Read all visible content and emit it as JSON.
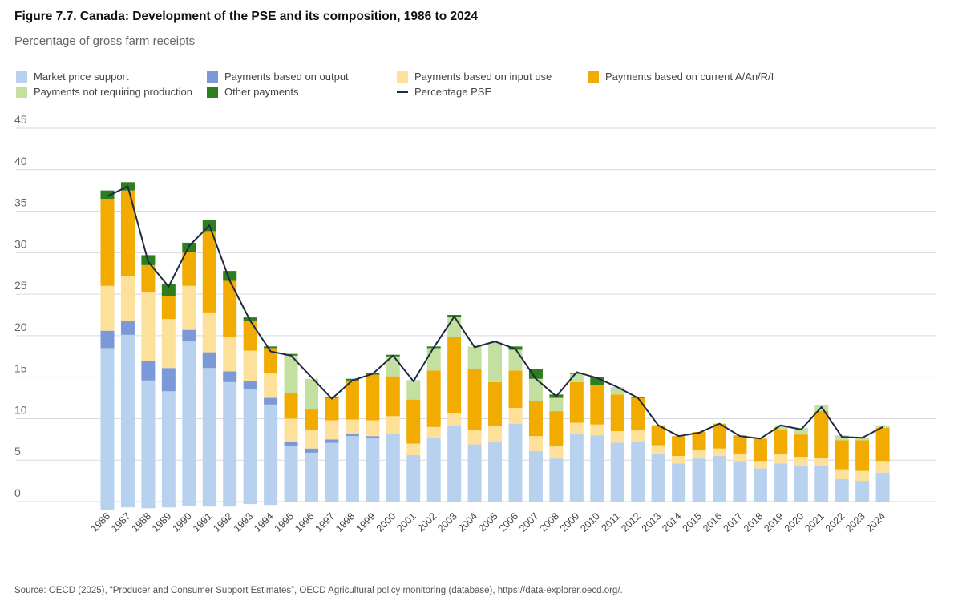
{
  "title": "Figure 7.7. Canada: Development of the PSE and its composition, 1986 to 2024",
  "subtitle": "Percentage of gross farm receipts",
  "source": "Source: OECD (2025), “Producer and Consumer Support Estimates”, OECD Agricultural policy monitoring (database), https://data-explorer.oecd.org/.",
  "chart_data": {
    "type": "bar",
    "stacked": true,
    "ylim": [
      0,
      45
    ],
    "yticks": [
      0,
      5,
      10,
      15,
      20,
      25,
      30,
      35,
      40,
      45
    ],
    "grid": true,
    "legend_position": "top",
    "categories": [
      "1986",
      "1987",
      "1988",
      "1989",
      "1990",
      "1991",
      "1992",
      "1993",
      "1994",
      "1995",
      "1996",
      "1997",
      "1998",
      "1999",
      "2000",
      "2001",
      "2002",
      "2003",
      "2004",
      "2005",
      "2006",
      "2007",
      "2008",
      "2009",
      "2010",
      "2011",
      "2012",
      "2013",
      "2014",
      "2015",
      "2016",
      "2017",
      "2018",
      "2019",
      "2020",
      "2021",
      "2022",
      "2023",
      "2024"
    ],
    "series": [
      {
        "name": "Market price support",
        "color": "#b7d1ee",
        "values": [
          18.5,
          20.1,
          14.6,
          13.3,
          19.3,
          16.1,
          14.4,
          13.5,
          11.7,
          6.7,
          5.9,
          7.1,
          7.9,
          7.7,
          8.1,
          5.6,
          7.7,
          9.1,
          6.9,
          7.2,
          9.4,
          6.1,
          5.2,
          8.2,
          8.0,
          7.1,
          7.2,
          5.8,
          4.6,
          5.2,
          5.5,
          4.9,
          4.0,
          4.6,
          4.3,
          4.3,
          2.7,
          2.5,
          3.5
        ]
      },
      {
        "name": "Payments based on output",
        "color": "#7b98d8",
        "values": [
          2.1,
          1.7,
          2.4,
          2.8,
          1.4,
          1.9,
          1.3,
          1.0,
          0.8,
          0.5,
          0.5,
          0.4,
          0.3,
          0.2,
          0.1,
          0,
          0,
          0,
          0,
          0,
          0,
          0,
          0,
          0,
          0,
          0,
          0,
          0,
          0,
          0,
          0,
          0,
          0,
          0,
          0,
          0,
          0,
          0,
          0
        ]
      },
      {
        "name": "Payments based on input use",
        "color": "#fde09a",
        "values": [
          5.4,
          5.4,
          8.2,
          5.9,
          5.3,
          4.8,
          4.1,
          3.7,
          3.0,
          2.8,
          2.2,
          2.3,
          1.7,
          1.9,
          2.1,
          1.4,
          1.3,
          1.6,
          1.7,
          1.9,
          1.9,
          1.8,
          1.5,
          1.3,
          1.3,
          1.4,
          1.4,
          1.0,
          0.9,
          1.0,
          0.9,
          0.9,
          0.9,
          1.1,
          1.1,
          1.0,
          1.2,
          1.2,
          1.4
        ]
      },
      {
        "name": "Payments based on current A/An/R/I",
        "color": "#f2ab00",
        "values": [
          10.5,
          10.3,
          3.3,
          2.8,
          4.1,
          9.8,
          6.8,
          3.6,
          3.0,
          3.1,
          2.5,
          2.7,
          4.7,
          5.5,
          4.8,
          5.3,
          6.8,
          9.1,
          7.4,
          5.3,
          4.5,
          4.2,
          4.2,
          4.9,
          4.7,
          4.4,
          3.9,
          2.4,
          2.4,
          2.2,
          3.0,
          2.2,
          2.7,
          2.9,
          2.7,
          5.6,
          3.5,
          3.7,
          4.0
        ]
      },
      {
        "name": "Payments not requiring production",
        "color": "#c4e0a0",
        "values": [
          0,
          0,
          0,
          0,
          0,
          0,
          0,
          0,
          0,
          4.5,
          3.7,
          0,
          0,
          0,
          2.4,
          2.2,
          2.7,
          2.4,
          2.7,
          4.8,
          2.5,
          2.7,
          1.6,
          1.0,
          0,
          0.9,
          0,
          0,
          0,
          0,
          0,
          0,
          0,
          0.6,
          0.8,
          0.7,
          0.6,
          0.3,
          0.3
        ]
      },
      {
        "name": "Other payments",
        "color": "#2e7d1e",
        "values": [
          1.0,
          1.0,
          1.2,
          1.4,
          1.1,
          1.3,
          1.2,
          0.4,
          0.2,
          0.2,
          0,
          0.1,
          0.2,
          0.2,
          0.2,
          0.1,
          0.2,
          0.3,
          0,
          0,
          0.4,
          1.2,
          0.4,
          0.1,
          1.0,
          0,
          0.1,
          0,
          0,
          0,
          0,
          0,
          0,
          0,
          0,
          0,
          0,
          0,
          0
        ]
      },
      {
        "color": "#b7d1ee",
        "values": [
          -1.0,
          -0.7,
          -0.8,
          -0.7,
          -0.5,
          -0.6,
          -0.6,
          -0.3,
          -0.4,
          0,
          0,
          0,
          0,
          0,
          0,
          0,
          0,
          0,
          0,
          0,
          0,
          0,
          0,
          0,
          0,
          0,
          0,
          0,
          0,
          0,
          0,
          0,
          0,
          0,
          0,
          0,
          0,
          0,
          0
        ]
      }
    ],
    "line": {
      "name": "Percentage PSE",
      "color": "#1f2a44",
      "values": [
        36.8,
        38.0,
        28.9,
        25.9,
        30.8,
        33.3,
        26.6,
        21.8,
        18.1,
        17.6,
        15.0,
        12.4,
        14.6,
        15.4,
        17.6,
        14.5,
        18.6,
        22.3,
        18.6,
        19.3,
        18.4,
        14.8,
        12.7,
        15.6,
        14.9,
        13.8,
        12.5,
        9.2,
        7.9,
        8.3,
        9.4,
        7.9,
        7.6,
        9.2,
        8.7,
        11.4,
        7.8,
        7.7,
        9.0
      ]
    }
  }
}
